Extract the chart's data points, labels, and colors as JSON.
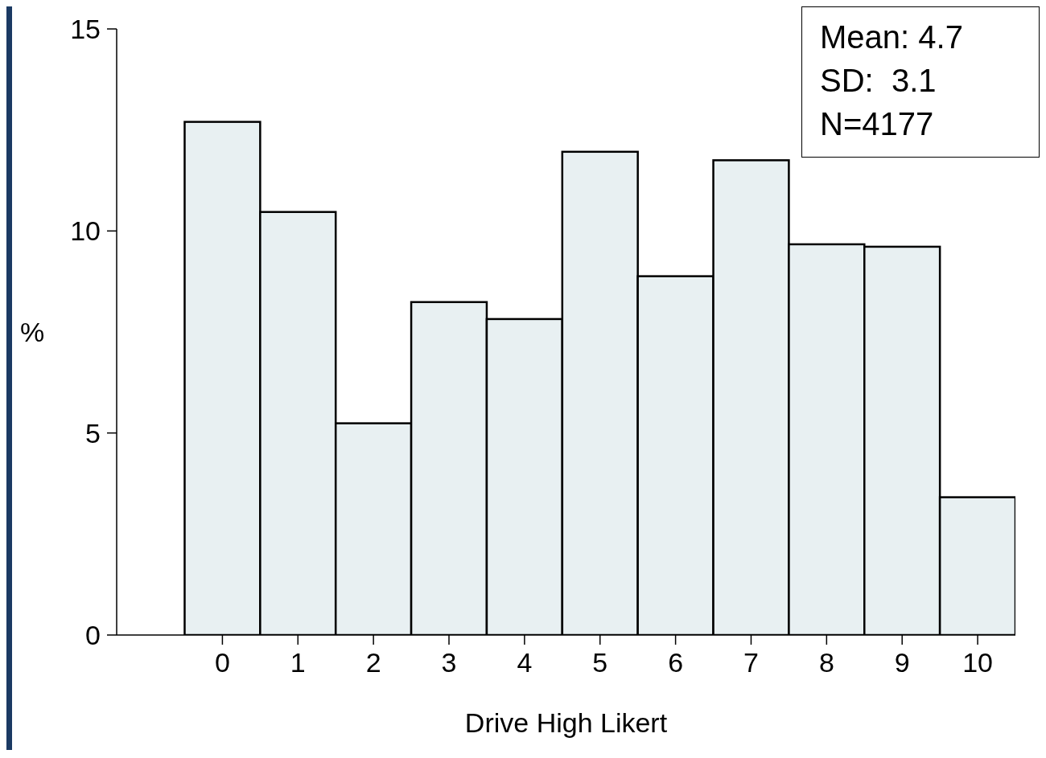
{
  "chart_data": {
    "type": "histogram",
    "xlabel": "Drive High Likert",
    "ylabel": "%",
    "bins": [
      -0.5,
      0.5,
      1.5,
      2.5,
      3.5,
      4.5,
      5.5,
      6.5,
      7.5,
      8.5,
      9.5,
      10.5
    ],
    "values": [
      12.7,
      10.47,
      5.24,
      8.24,
      7.82,
      11.96,
      8.88,
      11.75,
      9.67,
      9.61,
      3.41
    ],
    "color": "#e8f0f2",
    "xlim": [
      -1.4,
      10.5
    ],
    "xticks": [
      0,
      1,
      2,
      3,
      4,
      5,
      6,
      7,
      8,
      9,
      10
    ],
    "ylim": [
      0,
      15
    ],
    "yticks": [
      0,
      5,
      10,
      15
    ],
    "annotations": [
      "Mean: 4.7",
      "SD:  3.1",
      "N=4177"
    ],
    "grid": false
  }
}
